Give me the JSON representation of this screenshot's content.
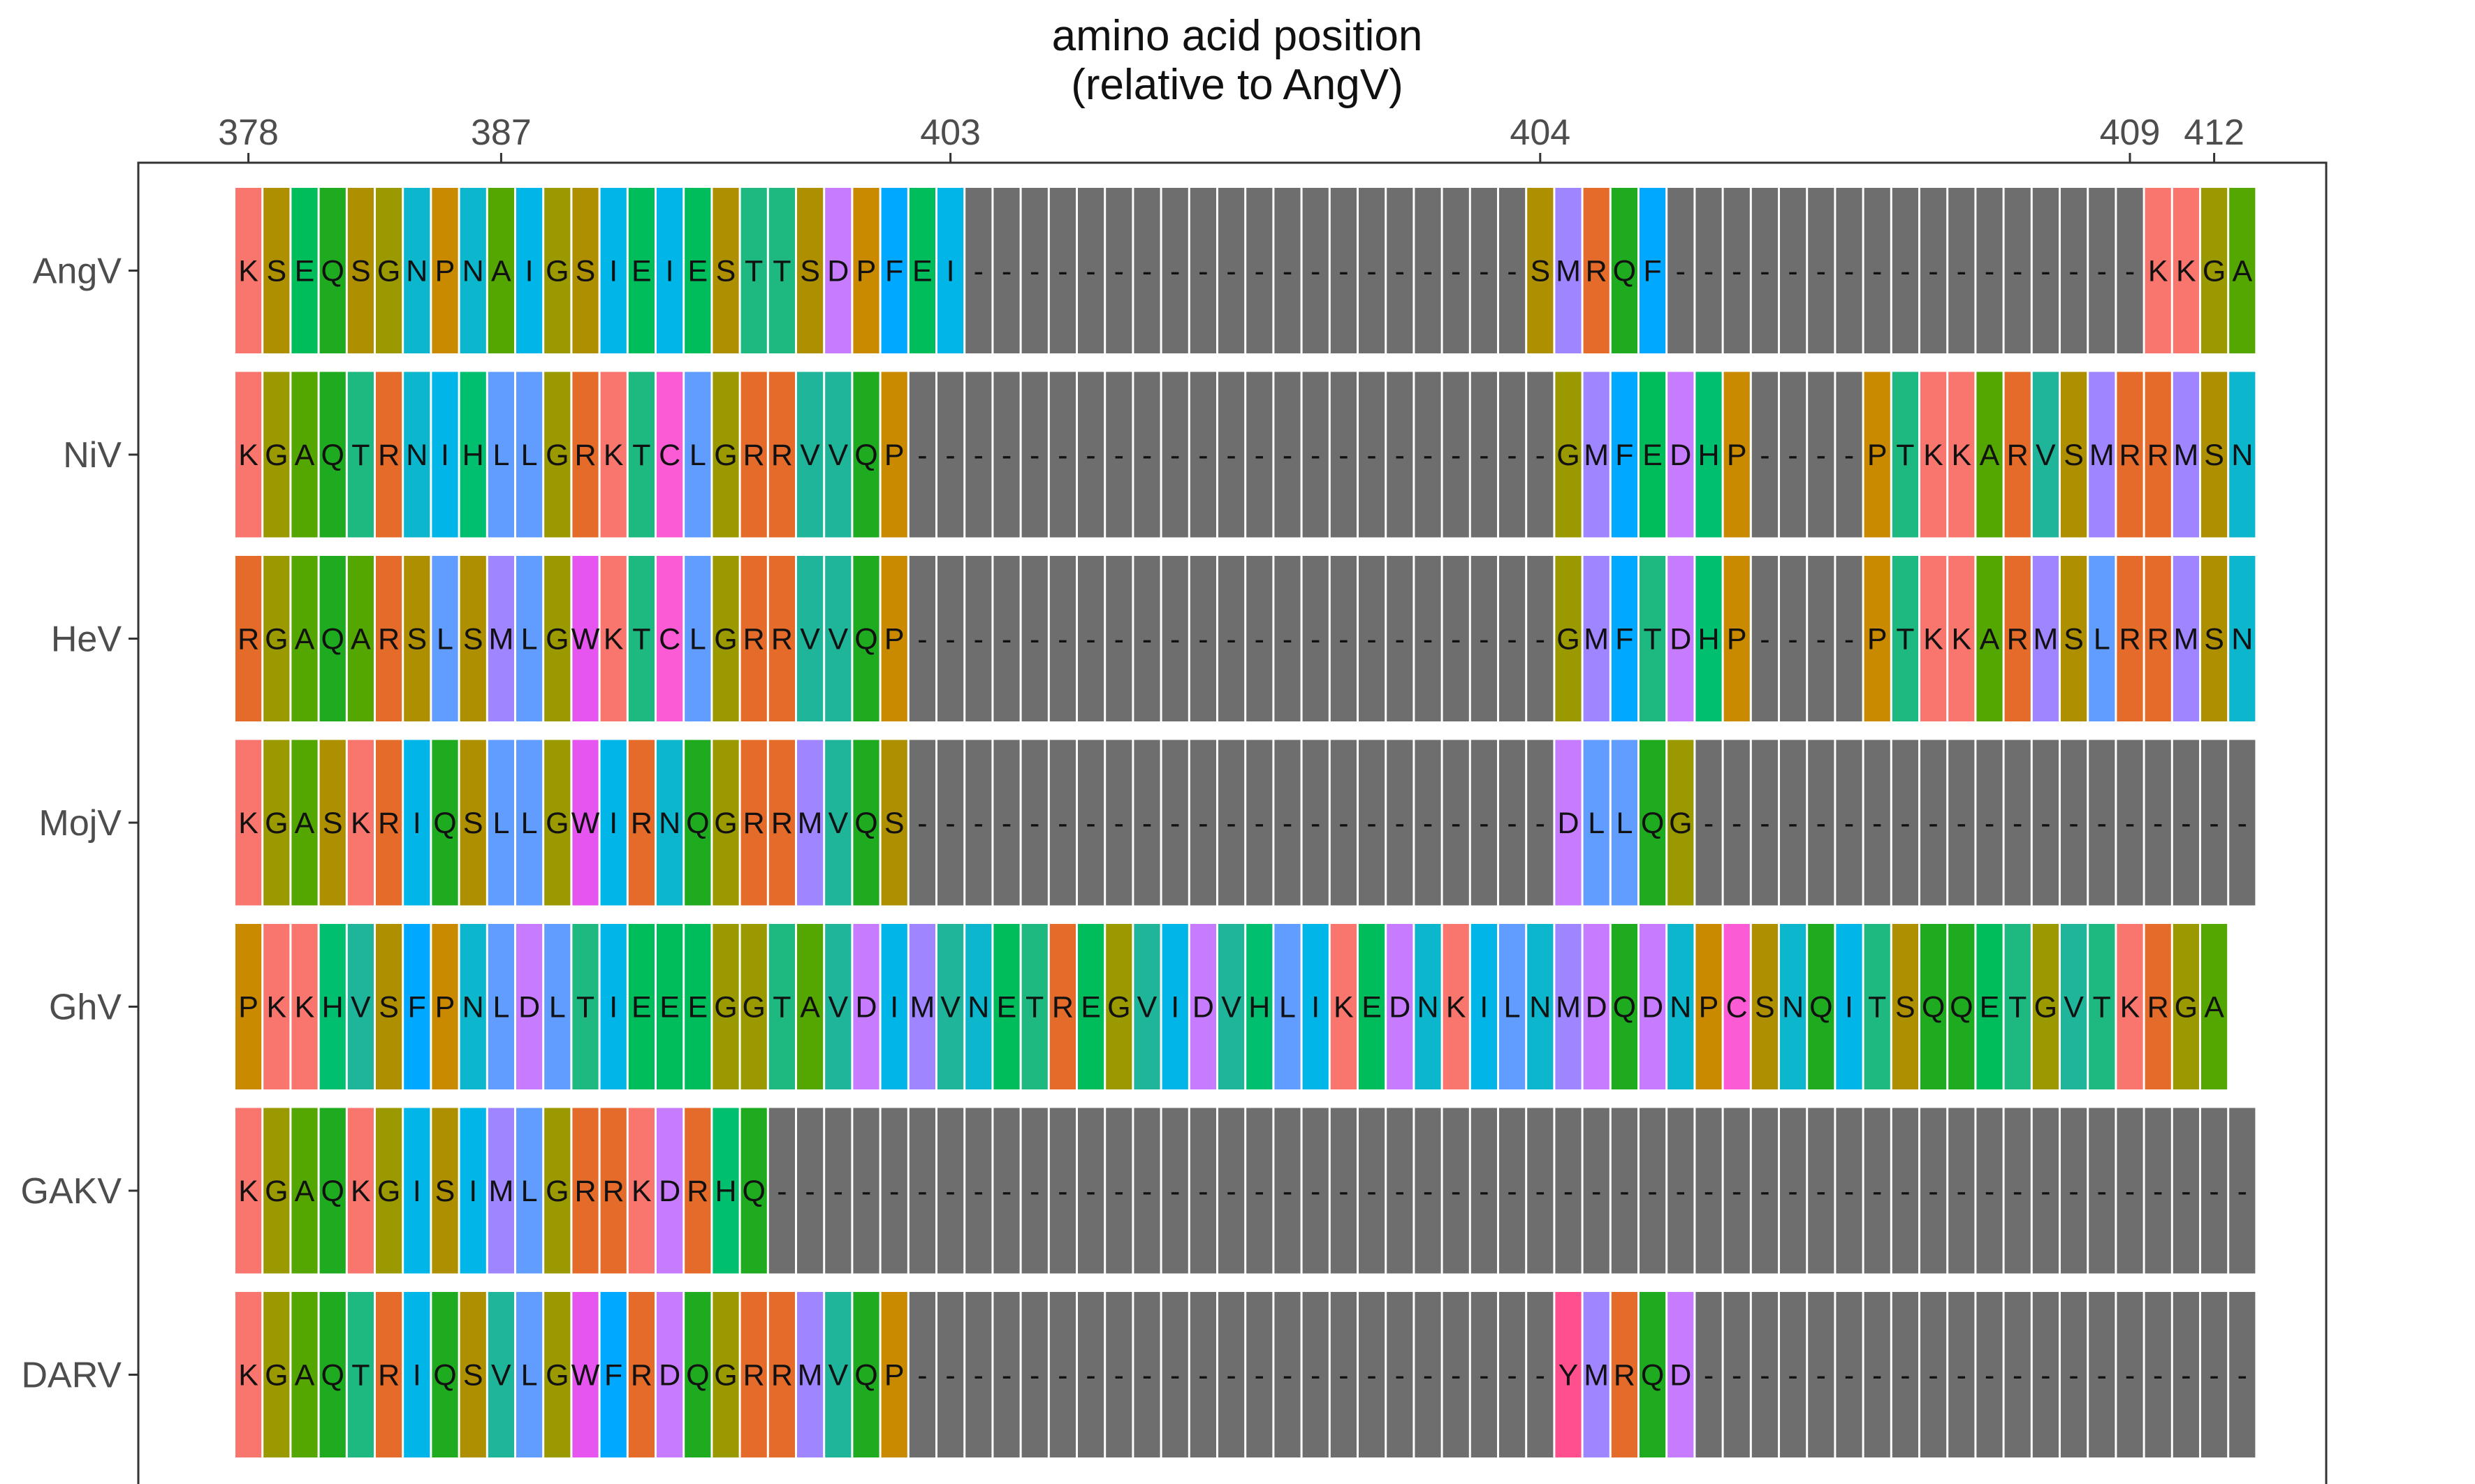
{
  "chart_data": {
    "type": "heatmap",
    "title": [
      "amino acid position",
      "(relative to AngV)"
    ],
    "x_ticks": [
      {
        "label": "378",
        "column": 1
      },
      {
        "label": "387",
        "column": 10
      },
      {
        "label": "403",
        "column": 26
      },
      {
        "label": "404",
        "column": 47
      },
      {
        "label": "409",
        "column": 68
      },
      {
        "label": "412",
        "column": 71
      }
    ],
    "rows": [
      {
        "name": "AngV",
        "sequence": "KSEQSGNPNAIGSIEIESTTSDPFEI--------------------SMRQF-----------------KKGA"
      },
      {
        "name": "NiV",
        "sequence": "KGAQTRNIHLLGRKTCLGRRVVQP-----------------------GMFEDHP----PTKKARVSMRRMSN"
      },
      {
        "name": "HeV",
        "sequence": "RGAQARSLSMLGWKTCLGRRVVQP-----------------------GMFTDHP----PTKKARMSLRRMSN"
      },
      {
        "name": "MojV",
        "sequence": "KGASKRIQSLLGWIRNQGRRMVQS-----------------------DLLQG--------------------"
      },
      {
        "name": "GhV",
        "sequence": "PKKHVSFPNLDLTIEEEGGTAVDIMVNETREGVIDVHLIKEDNKILNMDQDNPCSNQITSQQETGVTKRGA"
      },
      {
        "name": "GAKV",
        "sequence": "KGAQKGISIMLGRRKDRHQ-----------------------------------------------------"
      },
      {
        "name": "DARV",
        "sequence": "KGAQTRIQSVLGWFRDQGRRMVQP-----------------------YMRQD--------------------"
      }
    ],
    "gap_symbol": "-",
    "residue_colors": {
      "A": "#53a700",
      "C": "#fb5cd6",
      "D": "#c77cff",
      "E": "#00bd5c",
      "F": "#00a8ff",
      "G": "#9a9a00",
      "H": "#00bf6f",
      "I": "#00b5e8",
      "K": "#f8766d",
      "L": "#619cff",
      "M": "#9f85ff",
      "N": "#0cb6cc",
      "P": "#c98a00",
      "Q": "#1fab1f",
      "R": "#e56b2a",
      "S": "#ae8f00",
      "T": "#1eb981",
      "V": "#1fb59a",
      "W": "#e655f0",
      "Y": "#ff4f8f",
      "-": "#6e6e6e"
    }
  }
}
